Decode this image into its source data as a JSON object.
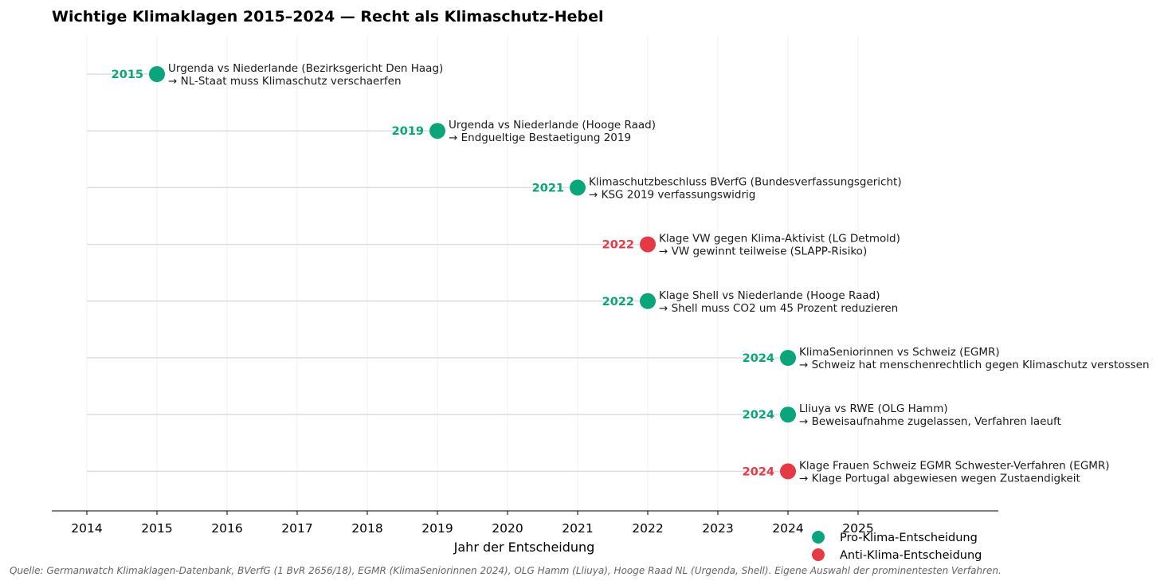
{
  "chart_data": {
    "type": "scatter",
    "title": "Wichtige Klimaklagen 2015–2024 — Recht als Klimaschutz-Hebel",
    "xlabel": "Jahr der Entscheidung",
    "xlim": [
      2013.5,
      2027.0
    ],
    "xticks": [
      2014,
      2015,
      2016,
      2017,
      2018,
      2019,
      2020,
      2021,
      2022,
      2023,
      2024,
      2025
    ],
    "colors": {
      "pro": "#0aa57a",
      "anti": "#e63946"
    },
    "cases": [
      {
        "year": 2015,
        "year_label": "2015",
        "outcome": "pro",
        "line1": "Urgenda vs Niederlande (Bezirksgericht Den Haag)",
        "line2": "→ NL-Staat muss Klimaschutz verschaerfen"
      },
      {
        "year": 2019,
        "year_label": "2019",
        "outcome": "pro",
        "line1": "Urgenda vs Niederlande (Hooge Raad)",
        "line2": "→ Endgueltige Bestaetigung 2019"
      },
      {
        "year": 2021,
        "year_label": "2021",
        "outcome": "pro",
        "line1": "Klimaschutzbeschluss BVerfG (Bundesverfassungsgericht)",
        "line2": "→ KSG 2019 verfassungswidrig"
      },
      {
        "year": 2022,
        "year_label": "2022",
        "outcome": "anti",
        "line1": "Klage VW gegen Klima-Aktivist (LG Detmold)",
        "line2": "→ VW gewinnt teilweise (SLAPP-Risiko)"
      },
      {
        "year": 2022,
        "year_label": "2022",
        "outcome": "pro",
        "line1": "Klage Shell vs Niederlande (Hooge Raad)",
        "line2": "→ Shell muss CO2 um 45 Prozent reduzieren"
      },
      {
        "year": 2024,
        "year_label": "2024",
        "outcome": "pro",
        "line1": "KlimaSeniorinnen vs Schweiz (EGMR)",
        "line2": "→ Schweiz hat menschenrechtlich gegen Klimaschutz verstossen"
      },
      {
        "year": 2024,
        "year_label": "2024",
        "outcome": "pro",
        "line1": "Lliuya vs RWE (OLG Hamm)",
        "line2": "→ Beweisaufnahme zugelassen, Verfahren laeuft"
      },
      {
        "year": 2024,
        "year_label": "2024",
        "outcome": "anti",
        "line1": "Klage Frauen Schweiz EGMR Schwester-Verfahren (EGMR)",
        "line2": "→ Klage Portugal abgewiesen wegen Zustaendigkeit"
      }
    ],
    "legend": [
      {
        "outcome": "pro",
        "label": "Pro-Klima-Entscheidung"
      },
      {
        "outcome": "anti",
        "label": "Anti-Klima-Entscheidung"
      }
    ],
    "legend_position": "bottom-right",
    "grid": "vertical-light",
    "source": "Quelle: Germanwatch Klimaklagen-Datenbank, BVerfG (1 BvR 2656/18), EGMR (KlimaSeniorinnen 2024), OLG Hamm (Lliuya), Hooge Raad NL (Urgenda, Shell). Eigene Auswahl der prominentesten Verfahren."
  }
}
